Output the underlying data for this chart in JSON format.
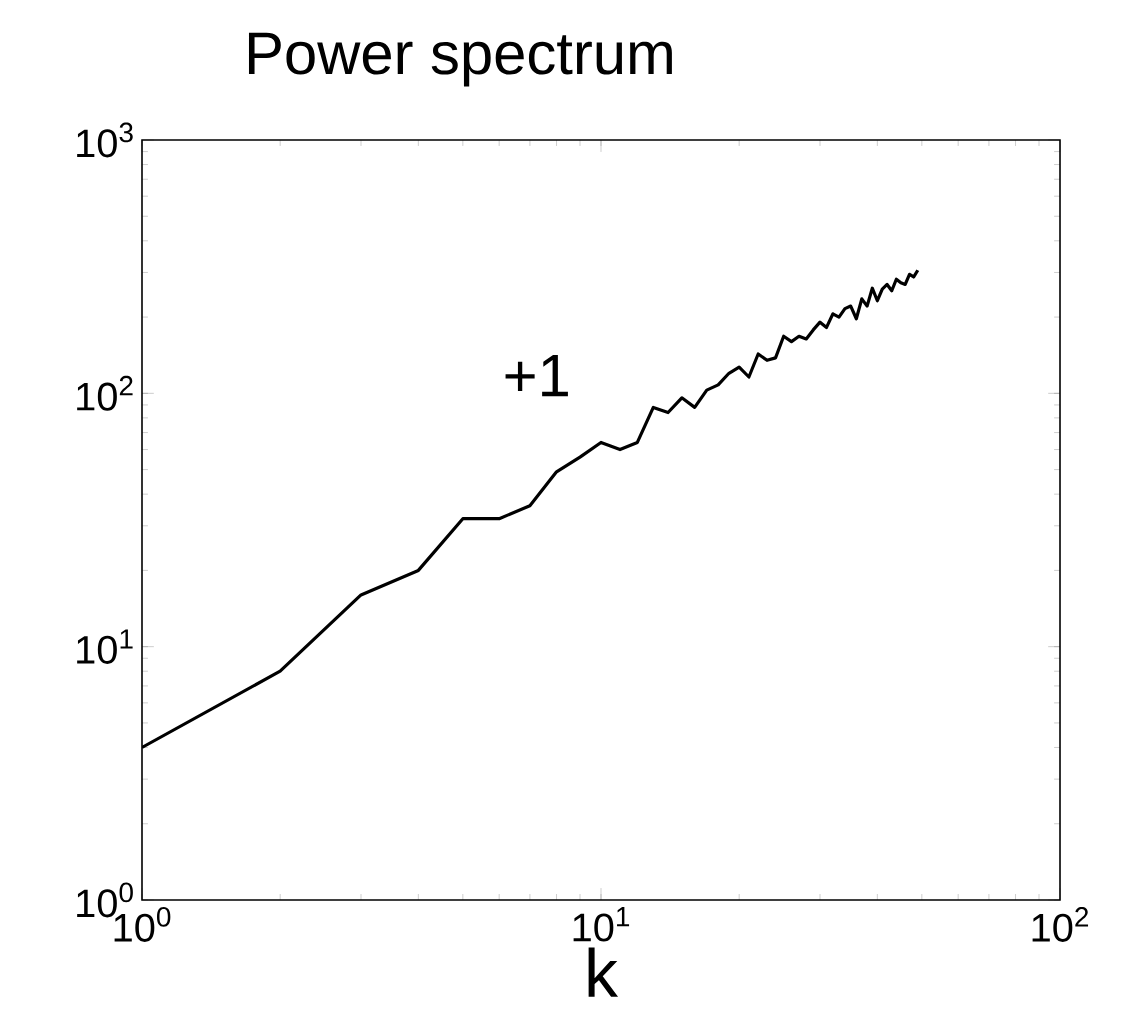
{
  "chart_data": {
    "type": "line",
    "title": "Power spectrum",
    "xlabel": "k",
    "x": [
      1,
      2,
      3,
      4,
      5,
      6,
      7,
      8,
      9,
      10,
      11,
      12,
      13,
      14,
      15,
      16,
      17,
      18,
      19,
      20,
      21,
      22,
      23,
      24,
      25,
      26,
      27,
      28,
      29,
      30,
      31,
      32,
      33,
      34,
      35,
      36,
      37,
      38,
      39,
      40,
      41,
      42,
      43,
      44,
      45,
      46,
      47,
      48,
      49
    ],
    "series": [
      {
        "color": "#000000",
        "values": [
          4,
          8,
          16,
          20,
          32,
          32,
          36,
          49,
          56,
          64,
          60,
          64,
          88,
          84,
          96,
          88,
          103,
          108,
          120,
          127,
          116,
          143,
          135,
          138,
          168,
          160,
          168,
          164,
          178,
          191,
          182,
          206,
          200,
          216,
          221,
          197,
          236,
          221,
          260,
          232,
          258,
          269,
          254,
          282,
          273,
          269,
          295,
          288,
          306
        ]
      }
    ],
    "log": "xy",
    "xlim": [
      1,
      100
    ],
    "ylim": [
      1,
      1000
    ],
    "xticks": [
      {
        "value": 1,
        "label": "10$^{0}$"
      },
      {
        "value": 10,
        "label": "10$^{1}$"
      },
      {
        "value": 100,
        "label": "10$^{2}$"
      }
    ],
    "yticks": [
      {
        "value": 1,
        "label": "10$^{0}$"
      },
      {
        "value": 10,
        "label": "10$^{1}$"
      },
      {
        "value": 100,
        "label": "10$^{2}$"
      },
      {
        "value": 1000,
        "label": "10$^{3}$"
      }
    ],
    "annotations": [
      "+1"
    ],
    "marker": "none",
    "line_style": "solid"
  }
}
